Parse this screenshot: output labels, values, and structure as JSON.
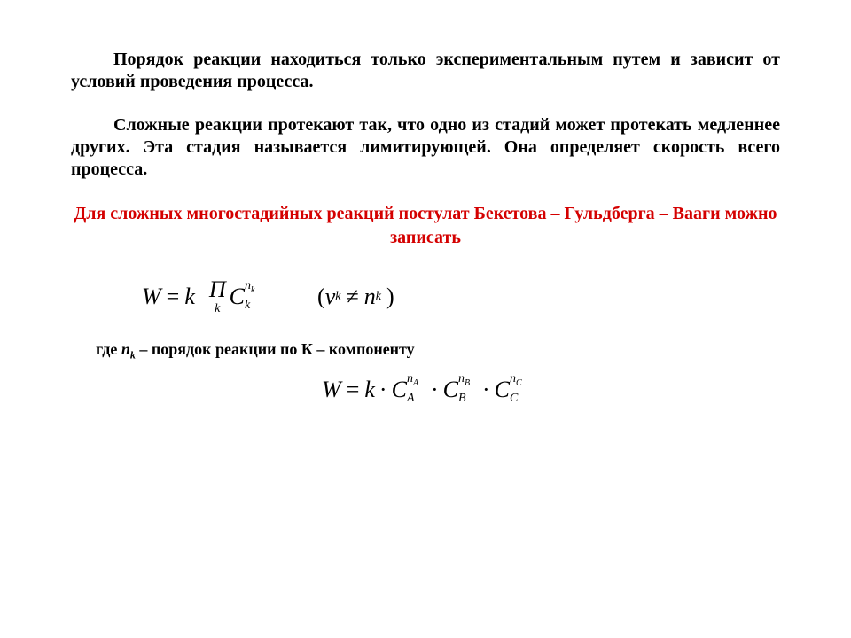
{
  "colors": {
    "text": "#000000",
    "heading": "#d40000",
    "background": "#ffffff"
  },
  "typography": {
    "body_fontsize_pt": 15,
    "heading_fontsize_pt": 15,
    "equation_fontsize_pt": 20,
    "font_family": "Times New Roman",
    "body_weight": "bold"
  },
  "para1": "Порядок реакции находиться только экспериментальным путем и зависит от условий проведения процесса.",
  "para2": "Сложные реакции протекают так, что одно из стадий может протекать медленнее других. Эта стадия называется лимитирующей. Она определяет скорость всего процесса.",
  "heading": "Для сложных многостадийных реакций постулат Бекетова – Гульдберга – Вааги можно записать",
  "eq1": {
    "W": "W",
    "eq": "=",
    "k": "k",
    "prod_sym": "П",
    "prod_limit": "k",
    "C": "C",
    "C_sub": "k",
    "C_sup_n": "n",
    "C_sup_sub": "k",
    "cond_lparen": "(",
    "cond_nu": "ν",
    "cond_nu_sub": "k",
    "cond_neq": "≠",
    "cond_n": "n",
    "cond_n_sub": "k",
    "cond_rparen": ")"
  },
  "note_prefix": "где ",
  "note_var": "n",
  "note_var_sub": "k",
  "note_suffix": " – порядок реакции по К – компоненту",
  "eq2": {
    "W": "W",
    "eq": "=",
    "k": "k",
    "dot": "·",
    "C": "C",
    "terms": [
      {
        "sub": "A",
        "sup_n": "n",
        "sup_sub": "A"
      },
      {
        "sub": "B",
        "sup_n": "n",
        "sup_sub": "B"
      },
      {
        "sub": "C",
        "sup_n": "n",
        "sup_sub": "C"
      }
    ]
  }
}
